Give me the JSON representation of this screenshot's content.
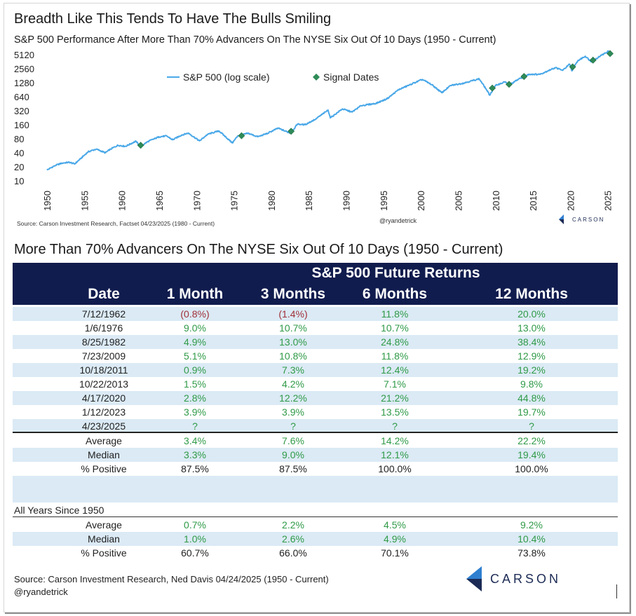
{
  "header": {
    "title": "Breadth Like This Tends To Have The Bulls Smiling",
    "subtitle": "S&P 500 Performance After More Than 70% Advancers On The NYSE Six Out Of 10 Days (1950 - Current)"
  },
  "chart_data": {
    "type": "line",
    "y_scale": "log",
    "y_ticks": [
      "5120",
      "2560",
      "1280",
      "640",
      "320",
      "160",
      "80",
      "40",
      "20",
      "10"
    ],
    "x_ticks": [
      "1950",
      "1955",
      "1960",
      "1965",
      "1970",
      "1975",
      "1980",
      "1985",
      "1990",
      "1995",
      "2000",
      "2005",
      "2010",
      "2015",
      "2020",
      "2025"
    ],
    "xlim": [
      1950,
      2025.4
    ],
    "ylim": [
      10,
      5120
    ],
    "legend": {
      "line_label": "S&P 500 (log scale)",
      "marker_label": "Signal Dates",
      "placement": "top-left"
    },
    "colors": {
      "line": "#4aa8e8",
      "marker": "#2e8b57"
    },
    "series": [
      {
        "name": "S&P 500 (log scale)",
        "points": [
          [
            1950.0,
            17
          ],
          [
            1951.0,
            21
          ],
          [
            1952.0,
            24
          ],
          [
            1953.0,
            25
          ],
          [
            1953.7,
            23
          ],
          [
            1954.5,
            30
          ],
          [
            1955.5,
            42
          ],
          [
            1956.6,
            48
          ],
          [
            1957.8,
            40
          ],
          [
            1958.5,
            48
          ],
          [
            1959.5,
            58
          ],
          [
            1960.5,
            55
          ],
          [
            1961.9,
            71
          ],
          [
            1962.5,
            54
          ],
          [
            1963.5,
            70
          ],
          [
            1965.0,
            88
          ],
          [
            1966.0,
            92
          ],
          [
            1966.8,
            76
          ],
          [
            1968.0,
            96
          ],
          [
            1968.9,
            106
          ],
          [
            1970.4,
            72
          ],
          [
            1971.5,
            100
          ],
          [
            1973.0,
            118
          ],
          [
            1974.8,
            65
          ],
          [
            1975.5,
            92
          ],
          [
            1976.9,
            105
          ],
          [
            1978.2,
            88
          ],
          [
            1979.5,
            105
          ],
          [
            1980.9,
            135
          ],
          [
            1982.6,
            105
          ],
          [
            1983.5,
            165
          ],
          [
            1984.5,
            160
          ],
          [
            1985.9,
            210
          ],
          [
            1987.6,
            330
          ],
          [
            1987.9,
            225
          ],
          [
            1989.5,
            350
          ],
          [
            1990.8,
            300
          ],
          [
            1992.0,
            410
          ],
          [
            1994.0,
            460
          ],
          [
            1995.5,
            580
          ],
          [
            1997.0,
            900
          ],
          [
            1998.5,
            1150
          ],
          [
            2000.2,
            1500
          ],
          [
            2001.5,
            1150
          ],
          [
            2002.8,
            780
          ],
          [
            2004.0,
            1120
          ],
          [
            2005.5,
            1230
          ],
          [
            2007.8,
            1550
          ],
          [
            2008.8,
            900
          ],
          [
            2009.2,
            690
          ],
          [
            2010.0,
            1120
          ],
          [
            2011.3,
            1340
          ],
          [
            2011.8,
            1130
          ],
          [
            2013.0,
            1500
          ],
          [
            2014.5,
            1950
          ],
          [
            2015.9,
            1930
          ],
          [
            2017.0,
            2300
          ],
          [
            2018.0,
            2700
          ],
          [
            2018.97,
            2350
          ],
          [
            2019.9,
            3200
          ],
          [
            2020.2,
            2300
          ],
          [
            2021.0,
            3800
          ],
          [
            2022.0,
            4750
          ],
          [
            2022.8,
            3600
          ],
          [
            2024.0,
            4800
          ],
          [
            2025.1,
            6100
          ],
          [
            2025.3,
            5300
          ]
        ]
      },
      {
        "name": "Signal Dates",
        "points": [
          [
            1962.53,
            58
          ],
          [
            1976.02,
            93
          ],
          [
            1982.65,
            116
          ],
          [
            2009.56,
            980
          ],
          [
            2011.8,
            1180
          ],
          [
            2013.8,
            1740
          ],
          [
            2020.3,
            2800
          ],
          [
            2023.03,
            3900
          ],
          [
            2025.31,
            5400
          ]
        ]
      }
    ]
  },
  "chart_footer": {
    "source": "Source: Carson Investment Research, Factset 04/23/2025 (1980 - Current)",
    "handle": "@ryandetrick",
    "brand": "CARSON"
  },
  "table": {
    "title": "More Than 70% Advancers On The NYSE Six Out Of 10 Days (1950 - Current)",
    "group_header": "S&P 500 Future Returns",
    "columns": [
      "Date",
      "1 Month",
      "3 Months",
      "6 Months",
      "12 Months"
    ],
    "rows": [
      {
        "date": "7/12/1962",
        "m1": "(0.8%)",
        "m3": "(1.4%)",
        "m6": "11.8%",
        "m12": "20.0%"
      },
      {
        "date": "1/6/1976",
        "m1": "9.0%",
        "m3": "10.7%",
        "m6": "10.7%",
        "m12": "13.0%"
      },
      {
        "date": "8/25/1982",
        "m1": "4.9%",
        "m3": "13.0%",
        "m6": "24.8%",
        "m12": "38.4%"
      },
      {
        "date": "7/23/2009",
        "m1": "5.1%",
        "m3": "10.8%",
        "m6": "11.8%",
        "m12": "12.9%"
      },
      {
        "date": "10/18/2011",
        "m1": "0.9%",
        "m3": "7.3%",
        "m6": "12.4%",
        "m12": "19.2%"
      },
      {
        "date": "10/22/2013",
        "m1": "1.5%",
        "m3": "4.2%",
        "m6": "7.1%",
        "m12": "9.8%"
      },
      {
        "date": "4/17/2020",
        "m1": "2.8%",
        "m3": "12.2%",
        "m6": "21.2%",
        "m12": "44.8%"
      },
      {
        "date": "1/12/2023",
        "m1": "3.9%",
        "m3": "3.9%",
        "m6": "13.5%",
        "m12": "19.7%"
      },
      {
        "date": "4/23/2025",
        "m1": "?",
        "m3": "?",
        "m6": "?",
        "m12": "?"
      }
    ],
    "summary": [
      {
        "label": "Average",
        "m1": "3.4%",
        "m3": "7.6%",
        "m6": "14.2%",
        "m12": "22.2%"
      },
      {
        "label": "Median",
        "m1": "3.3%",
        "m3": "9.0%",
        "m6": "12.1%",
        "m12": "19.4%"
      },
      {
        "label": "% Positive",
        "m1": "87.5%",
        "m3": "87.5%",
        "m6": "100.0%",
        "m12": "100.0%"
      }
    ],
    "all_years_label": "All Years Since 1950",
    "all_years": [
      {
        "label": "Average",
        "m1": "0.7%",
        "m3": "2.2%",
        "m6": "4.5%",
        "m12": "9.2%"
      },
      {
        "label": "Median",
        "m1": "1.0%",
        "m3": "2.6%",
        "m6": "4.9%",
        "m12": "10.4%"
      },
      {
        "label": "% Positive",
        "m1": "60.7%",
        "m3": "66.0%",
        "m6": "70.1%",
        "m12": "73.8%"
      }
    ]
  },
  "footer": {
    "source": "Source: Carson Investment Research, Ned Davis 04/24/2025 (1950 - Current)",
    "handle": "@ryandetrick",
    "brand": "CARSON"
  }
}
